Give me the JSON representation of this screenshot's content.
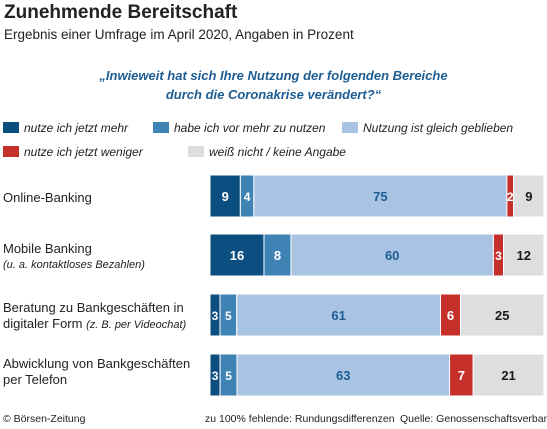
{
  "header": {
    "title": "Zunehmende Bereitschaft",
    "subtitle": "Ergebnis einer Umfrage im April 2020, Angaben in Prozent",
    "question_line1": "„Inwieweit hat sich Ihre Nutzung der folgenden Bereiche",
    "question_line2": "durch die Coronakrise verändert?“"
  },
  "colors": {
    "dark_blue": "#0d4e80",
    "mid_blue": "#3f82b4",
    "light_blue": "#a9c3e2",
    "red": "#c6302b",
    "light_grey": "#dedede"
  },
  "chart_data": {
    "type": "bar",
    "orientation": "horizontal",
    "stacked": true,
    "categories": [
      "Online-Banking",
      "Mobile Banking (u. a. kontaktloses Bezahlen)",
      "Beratung zu Bankgeschäften in digitaler Form (z. B. per Videochat)",
      "Abwicklung von Bankgeschäften per Telefon"
    ],
    "category_labels": [
      {
        "main": "Online-Banking",
        "sub": ""
      },
      {
        "main": "Mobile Banking",
        "sub": "(u. a. kontaktloses Bezahlen)"
      },
      {
        "main": "Beratung zu Bankgeschäften in digitaler Form",
        "sub": "(z. B. per Videochat)"
      },
      {
        "main": "Abwicklung von Bankgeschäften per Telefon",
        "sub": ""
      }
    ],
    "series": [
      {
        "name": "nutze ich jetzt mehr",
        "color": "#0d4e80",
        "values": [
          9,
          16,
          3,
          3
        ]
      },
      {
        "name": "habe ich vor mehr zu nutzen",
        "color": "#3f82b4",
        "values": [
          4,
          8,
          5,
          5
        ]
      },
      {
        "name": "Nutzung ist gleich geblieben",
        "color": "#a9c3e2",
        "values": [
          75,
          60,
          61,
          63
        ]
      },
      {
        "name": "nutze ich jetzt weniger",
        "color": "#c6302b",
        "values": [
          2,
          3,
          6,
          7
        ]
      },
      {
        "name": "weiß nicht / keine Angabe",
        "color": "#dedede",
        "values": [
          9,
          12,
          25,
          21
        ]
      }
    ],
    "legend_placement": "top",
    "grid": false
  },
  "footer": {
    "copyright": "© Börsen-Zeitung",
    "note": "zu 100% fehlende: Rundungsdifferenzen",
    "source": "Quelle: Genossenschaftsverband"
  }
}
